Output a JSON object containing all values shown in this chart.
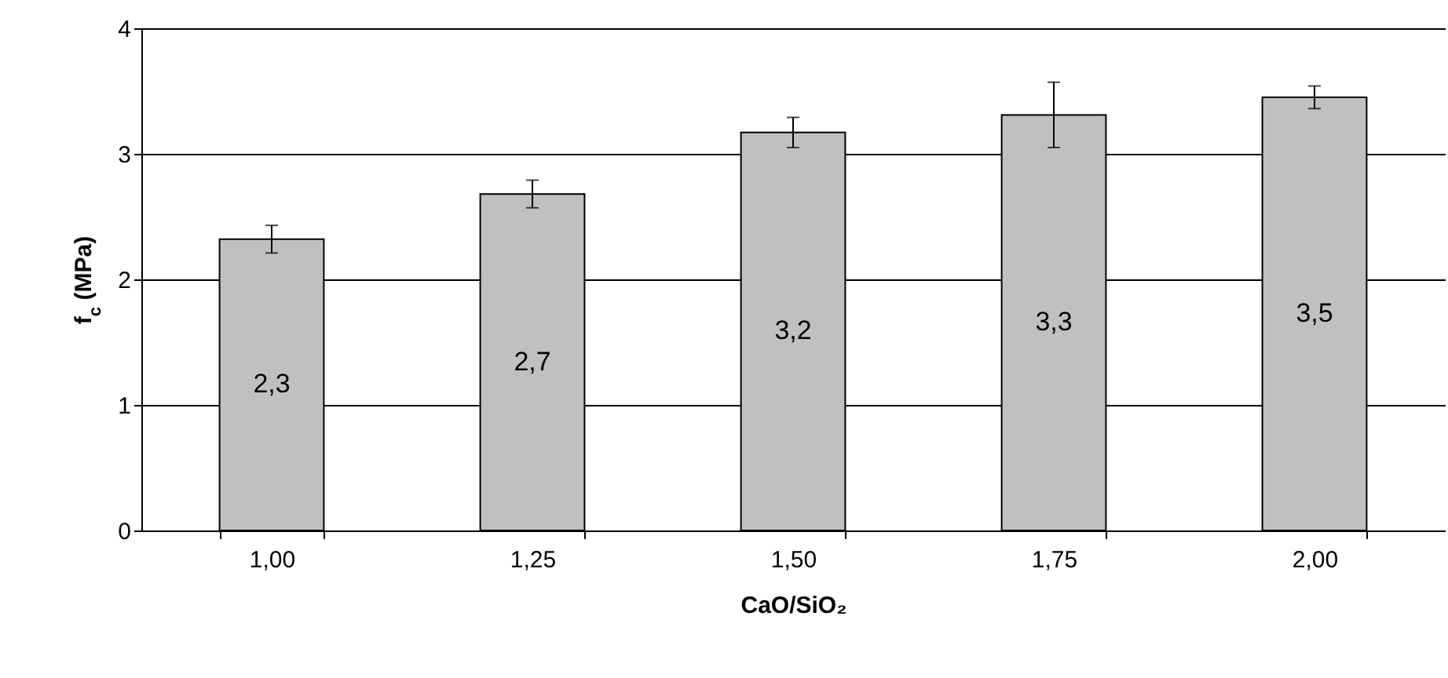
{
  "chart_data": {
    "type": "bar",
    "xlabel": "CaO/SiO₂",
    "ylabel": "f$_{c}$ (MPa)",
    "categories": [
      "1,00",
      "1,25",
      "1,50",
      "1,75",
      "2,00"
    ],
    "values": [
      2.32,
      2.68,
      3.17,
      3.31,
      3.45
    ],
    "value_labels": [
      "2,3",
      "2,7",
      "3,2",
      "3,3",
      "3,5"
    ],
    "errors": [
      0.11,
      0.11,
      0.12,
      0.26,
      0.09
    ],
    "color": "#c0c0c0",
    "ylim": [
      0,
      4
    ],
    "yticks": [
      0,
      1,
      2,
      3,
      4
    ],
    "grid": "y"
  }
}
